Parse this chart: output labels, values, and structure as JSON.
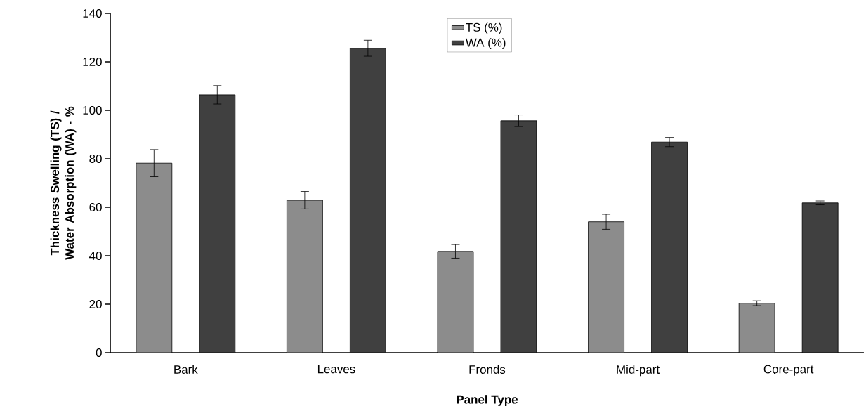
{
  "chart_data": {
    "type": "bar",
    "xlabel": "Panel Type",
    "ylabel": "Thickness Swelling (TS) / Water Absorption (WA) - %",
    "categories": [
      "Bark",
      "Leaves",
      "Fronds",
      "Mid-part",
      "Core-part"
    ],
    "series": [
      {
        "name": "TS (%)",
        "color": "#8c8c8c",
        "values": [
          78.2,
          62.9,
          41.8,
          54.0,
          20.4
        ],
        "errors": [
          5.6,
          3.6,
          2.8,
          3.1,
          1.0
        ]
      },
      {
        "name": "WA (%)",
        "color": "#404040",
        "values": [
          106.4,
          125.6,
          95.7,
          86.9,
          61.8
        ],
        "errors": [
          3.8,
          3.3,
          2.4,
          1.9,
          0.8
        ]
      }
    ],
    "ylim": [
      0,
      140
    ],
    "yticks": [
      0,
      20,
      40,
      60,
      80,
      100,
      120,
      140
    ],
    "grid": false,
    "legend": "top"
  }
}
